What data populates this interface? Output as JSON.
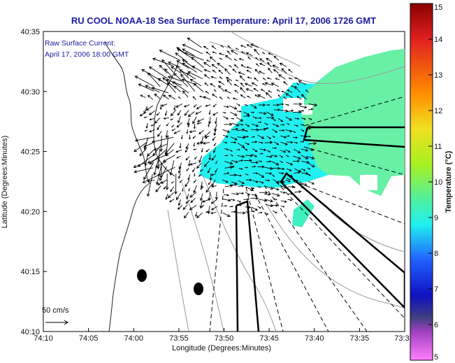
{
  "chart_data": {
    "type": "heatmap",
    "title": "RU COOL  NOAA-18  Sea Surface Temperature:  April 17, 2006 1726 GMT",
    "xlabel": "Longitude (Degrees:Minutes)",
    "ylabel": "Latitude (Degrees:Minutes)",
    "x_tick_labels": [
      "74:10",
      "74:05",
      "74:00",
      "73:55",
      "73:50",
      "73:45",
      "73:40",
      "73:35",
      "73:3"
    ],
    "y_tick_labels": [
      "40:35",
      "40:30",
      "40:25",
      "40:20",
      "40:15",
      "40:10"
    ],
    "xlim_minutes_west": [
      70,
      30
    ],
    "ylim_minutes_north": [
      10,
      35
    ],
    "colorbar": {
      "label": "Temperature (°C)",
      "ticks": [
        "15",
        "14",
        "13",
        "12",
        "11",
        "10",
        "9",
        "8",
        "7",
        "6",
        "5"
      ],
      "range": [
        5,
        15
      ]
    },
    "annotations": {
      "current_label": "Raw Surface Current:",
      "current_time": "April 17, 2006 18:00 GMT",
      "scale_label": "50 cm/s"
    },
    "sst_range_observed": [
      8.8,
      9.6
    ],
    "colors": {
      "title": "#1a1aa0",
      "sst_cyan": "#22f0f0",
      "sst_green": "#6ef0a0",
      "vector": "#000000",
      "contour": "#9a9a9a"
    }
  }
}
